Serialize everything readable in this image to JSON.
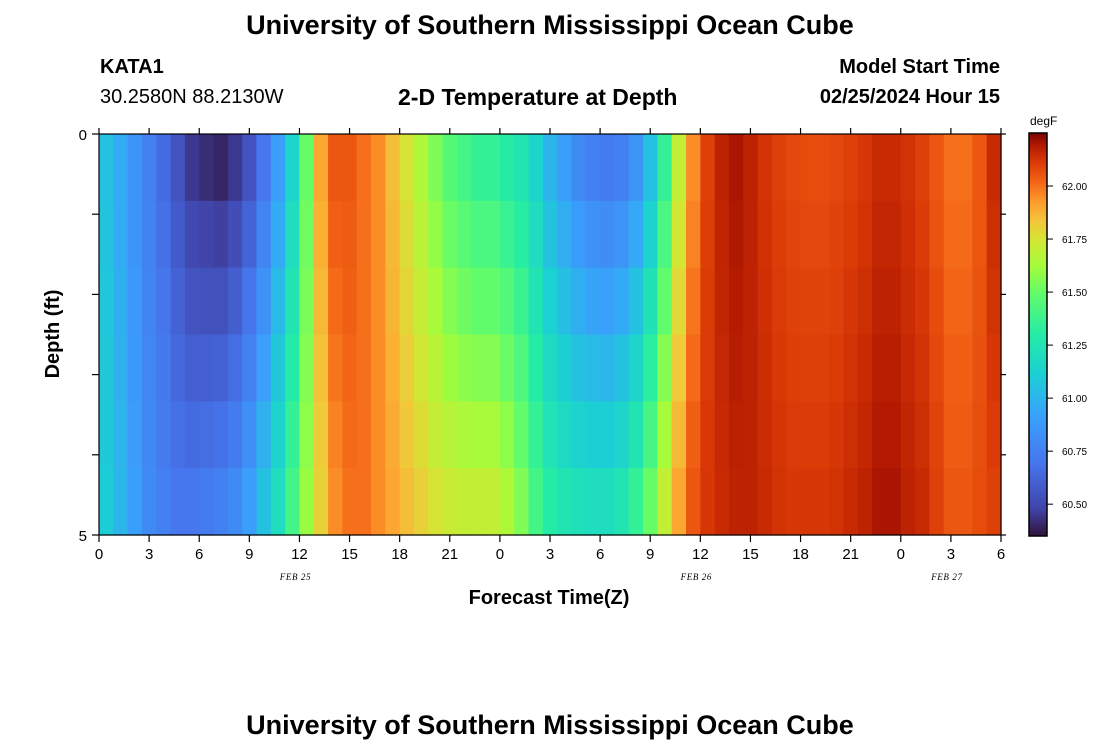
{
  "header": {
    "title": "University of Southern Mississippi Ocean Cube",
    "station_id": "KATA1",
    "station_coords": "30.2580N  88.2130W",
    "subtitle": "2-D Temperature at Depth",
    "model_start_label": "Model Start Time",
    "model_start_value": "02/25/2024 Hour 15"
  },
  "footer": {
    "title": "University of Southern Mississippi Ocean Cube"
  },
  "chart_data": {
    "type": "heatmap",
    "title": "2-D Temperature at Depth",
    "xlabel": "Forecast Time(Z)",
    "ylabel": "Depth (ft)",
    "x_tick_labels": [
      "0",
      "3",
      "6",
      "9",
      "12",
      "15",
      "18",
      "21",
      "0",
      "3",
      "6",
      "9",
      "12",
      "15",
      "18",
      "21",
      "0",
      "3",
      "6"
    ],
    "date_labels": [
      "FEB 25",
      "FEB 26",
      "FEB 27"
    ],
    "y_tick_labels": [
      "0",
      "5"
    ],
    "ylim": [
      0,
      5
    ],
    "colorbar": {
      "unit": "degF",
      "range": [
        60.35,
        62.25
      ],
      "tick_values": [
        60.5,
        60.75,
        61.0,
        61.25,
        61.5,
        61.75,
        62.0
      ],
      "tick_labels": [
        "60.50",
        "60.75",
        "61.00",
        "61.25",
        "61.50",
        "61.75",
        "62.00"
      ]
    },
    "depth_layers_ft": [
      0.0,
      1.0,
      2.0,
      3.0,
      4.0,
      4.7
    ],
    "surface_profile_degF": [
      61.05,
      60.95,
      60.85,
      60.75,
      60.65,
      60.55,
      60.45,
      60.42,
      60.4,
      60.45,
      60.55,
      60.7,
      60.9,
      61.15,
      61.5,
      61.9,
      62.05,
      62.05,
      62.0,
      61.95,
      61.85,
      61.75,
      61.65,
      61.55,
      61.45,
      61.4,
      61.35,
      61.35,
      61.3,
      61.25,
      61.15,
      61.0,
      60.9,
      60.8,
      60.75,
      60.72,
      60.75,
      60.85,
      61.05,
      61.35,
      61.7,
      61.95,
      62.1,
      62.17,
      62.2,
      62.17,
      62.13,
      62.1,
      62.08,
      62.07,
      62.07,
      62.08,
      62.1,
      62.12,
      62.15,
      62.15,
      62.13,
      62.1,
      62.05,
      62.0,
      62.0,
      62.05,
      62.15
    ],
    "bottom_profile_degF": [
      61.1,
      61.0,
      60.9,
      60.8,
      60.75,
      60.7,
      60.7,
      60.72,
      60.75,
      60.8,
      60.9,
      61.05,
      61.2,
      61.4,
      61.6,
      61.8,
      61.95,
      62.0,
      62.0,
      61.95,
      61.9,
      61.85,
      61.8,
      61.75,
      61.72,
      61.7,
      61.7,
      61.7,
      61.65,
      61.55,
      61.4,
      61.3,
      61.25,
      61.22,
      61.2,
      61.2,
      61.25,
      61.35,
      61.5,
      61.7,
      61.9,
      62.05,
      62.12,
      62.15,
      62.17,
      62.17,
      62.15,
      62.13,
      62.12,
      62.12,
      62.12,
      62.13,
      62.15,
      62.17,
      62.2,
      62.2,
      62.17,
      62.15,
      62.1,
      62.05,
      62.05,
      62.07,
      62.1
    ]
  }
}
